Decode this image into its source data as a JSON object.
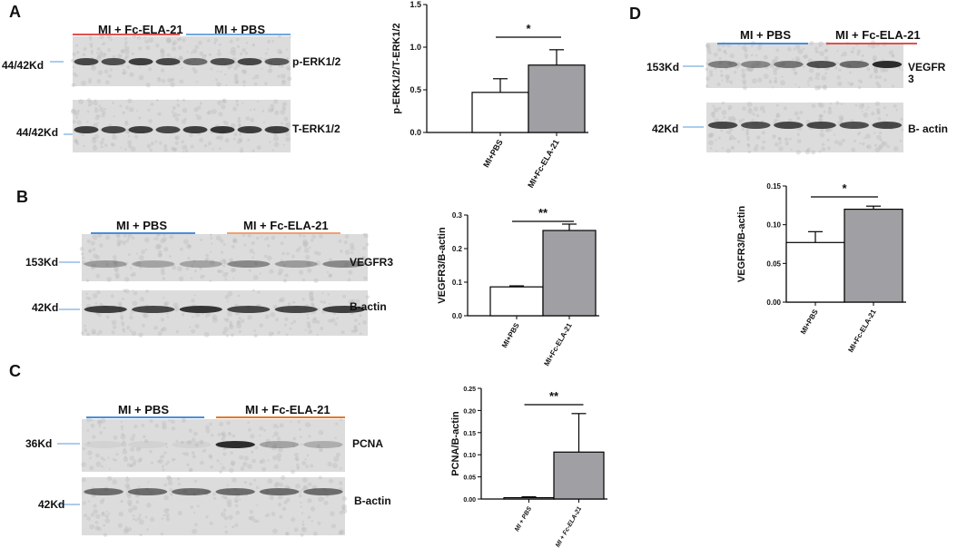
{
  "blots": [
    {
      "label": "A",
      "groups": [
        "MI + Fc-ELA-21",
        "MI + PBS"
      ],
      "rows": [
        {
          "kd": "44/42Kd",
          "protein": "p-ERK1/2"
        },
        {
          "kd": "44/42Kd",
          "protein": "T-ERK1/2"
        }
      ]
    },
    {
      "label": "B",
      "groups": [
        "MI + PBS",
        "MI + Fc-ELA-21"
      ],
      "rows": [
        {
          "kd": "153Kd",
          "protein": "VEGFR3"
        },
        {
          "kd": "42Kd",
          "protein": "B-actin"
        }
      ]
    },
    {
      "label": "C",
      "groups": [
        "MI + PBS",
        "MI + Fc-ELA-21"
      ],
      "rows": [
        {
          "kd": "36Kd",
          "protein": "PCNA"
        },
        {
          "kd": "42Kd",
          "protein": "B-actin"
        }
      ]
    },
    {
      "label": "D",
      "groups": [
        "MI + PBS",
        "MI + Fc-ELA-21"
      ],
      "rows": [
        {
          "kd": "153Kd",
          "protein": "VEGFR 3"
        },
        {
          "kd": "42Kd",
          "protein": "B- actin"
        }
      ]
    }
  ],
  "chart_data": [
    {
      "type": "bar",
      "y_label": "p-ERK1/2/T-ERK1/2",
      "categories": [
        "MI+PBS",
        "MI+Fc-ELA-21"
      ],
      "values": [
        0.47,
        0.79
      ],
      "errors": [
        0.16,
        0.18
      ],
      "colors": [
        "#ffffff",
        "#a0a0a4"
      ],
      "ylim": [
        0,
        1.5
      ],
      "yticks": [
        {
          "value": 0,
          "label": "0.0"
        },
        0.5,
        {
          "value": 1,
          "label": "1.0"
        },
        1.5
      ],
      "annotation": "*"
    },
    {
      "type": "bar",
      "y_label": "VEGFR3/B-actin",
      "categories": [
        "MI+PBS",
        "MI+Fc-ELA-21"
      ],
      "values": [
        0.086,
        0.254
      ],
      "errors": [
        0.003,
        0.019
      ],
      "colors": [
        "#ffffff",
        "#a0a0a4"
      ],
      "ylim": [
        0,
        0.3
      ],
      "yticks": [
        {
          "value": 0,
          "label": "0.0"
        },
        0.1,
        0.2,
        0.3
      ],
      "annotation": "**"
    },
    {
      "type": "bar",
      "y_label": "PCNA/B-actin",
      "categories": [
        "MI + PBS",
        "MI + Fc-ELA-21"
      ],
      "values": [
        0.003,
        0.106
      ],
      "errors": [
        0.002,
        0.087
      ],
      "colors": [
        "#ffffff",
        "#a0a0a4"
      ],
      "ylim": [
        0,
        0.25
      ],
      "yticks": [
        {
          "value": 0,
          "label": "0.00"
        },
        0.05,
        {
          "value": 0.1,
          "label": "0.10"
        },
        0.15,
        {
          "value": 0.2,
          "label": "0.20"
        },
        0.25
      ],
      "annotation": "**",
      "italic_categories": true
    },
    {
      "type": "bar",
      "y_label": "VEGFR3/B-actin",
      "categories": [
        "MI+PBS",
        "MI+Fc-ELA-21"
      ],
      "values": [
        0.077,
        0.12
      ],
      "errors": [
        0.014,
        0.004
      ],
      "colors": [
        "#ffffff",
        "#a0a0a4"
      ],
      "ylim": [
        0,
        0.15
      ],
      "yticks": [
        {
          "value": 0,
          "label": "0.00"
        },
        0.05,
        {
          "value": 0.1,
          "label": "0.10"
        },
        0.15
      ],
      "annotation": "*"
    }
  ]
}
